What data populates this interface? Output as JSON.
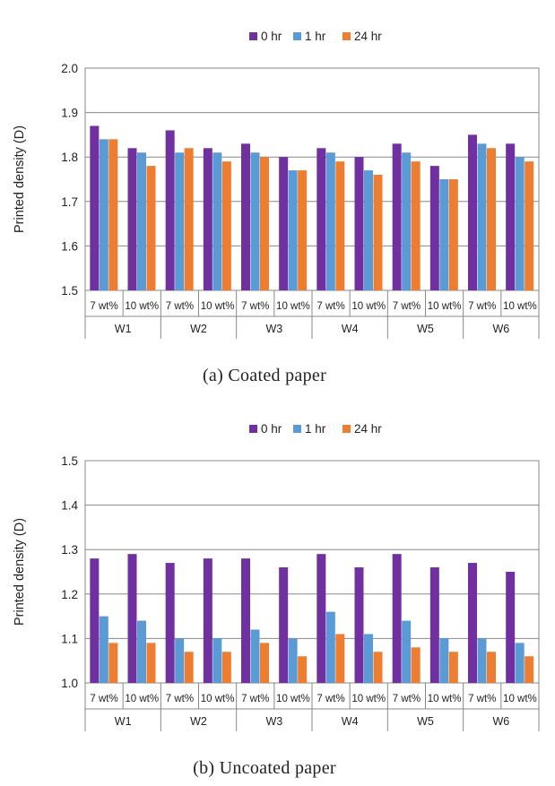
{
  "chart_data": [
    {
      "type": "bar",
      "caption": "(a) Coated paper",
      "ylabel": "Printed density (D)",
      "ylim": [
        1.5,
        2.0
      ],
      "yticks": [
        "1.5",
        "1.6",
        "1.7",
        "1.8",
        "1.9",
        "2.0"
      ],
      "legend_position": "top-center",
      "grid": true,
      "groups": [
        "W1",
        "W2",
        "W3",
        "W4",
        "W5",
        "W6"
      ],
      "categories": [
        "7 wt%",
        "10 wt%",
        "7 wt%",
        "10 wt%",
        "7 wt%",
        "10 wt%",
        "7 wt%",
        "10 wt%",
        "7 wt%",
        "10 wt%",
        "7 wt%",
        "10 wt%"
      ],
      "series": [
        {
          "name": "0 hr",
          "color": "#7030a0",
          "values": [
            1.87,
            1.82,
            1.86,
            1.82,
            1.83,
            1.8,
            1.82,
            1.8,
            1.83,
            1.78,
            1.85,
            1.83
          ]
        },
        {
          "name": "1 hr",
          "color": "#5b9bd5",
          "values": [
            1.84,
            1.81,
            1.81,
            1.81,
            1.81,
            1.77,
            1.81,
            1.77,
            1.81,
            1.75,
            1.83,
            1.8
          ]
        },
        {
          "name": "24 hr",
          "color": "#ed7d31",
          "values": [
            1.84,
            1.78,
            1.82,
            1.79,
            1.8,
            1.77,
            1.79,
            1.76,
            1.79,
            1.75,
            1.82,
            1.79
          ]
        }
      ]
    },
    {
      "type": "bar",
      "caption": "(b) Uncoated paper",
      "ylabel": "Printed density (D)",
      "ylim": [
        1.0,
        1.5
      ],
      "yticks": [
        "1.0",
        "1.1",
        "1.2",
        "1.3",
        "1.4",
        "1.5"
      ],
      "legend_position": "top-center",
      "grid": true,
      "groups": [
        "W1",
        "W2",
        "W3",
        "W4",
        "W5",
        "W6"
      ],
      "categories": [
        "7 wt%",
        "10 wt%",
        "7 wt%",
        "10 wt%",
        "7 wt%",
        "10 wt%",
        "7 wt%",
        "10 wt%",
        "7 wt%",
        "10 wt%",
        "7 wt%",
        "10 wt%"
      ],
      "series": [
        {
          "name": "0 hr",
          "color": "#7030a0",
          "values": [
            1.28,
            1.29,
            1.27,
            1.28,
            1.28,
            1.26,
            1.29,
            1.26,
            1.29,
            1.26,
            1.27,
            1.25
          ]
        },
        {
          "name": "1 hr",
          "color": "#5b9bd5",
          "values": [
            1.15,
            1.14,
            1.1,
            1.1,
            1.12,
            1.1,
            1.16,
            1.11,
            1.14,
            1.1,
            1.1,
            1.09
          ]
        },
        {
          "name": "24 hr",
          "color": "#ed7d31",
          "values": [
            1.09,
            1.09,
            1.07,
            1.07,
            1.09,
            1.06,
            1.11,
            1.07,
            1.08,
            1.07,
            1.07,
            1.06
          ]
        }
      ]
    }
  ]
}
